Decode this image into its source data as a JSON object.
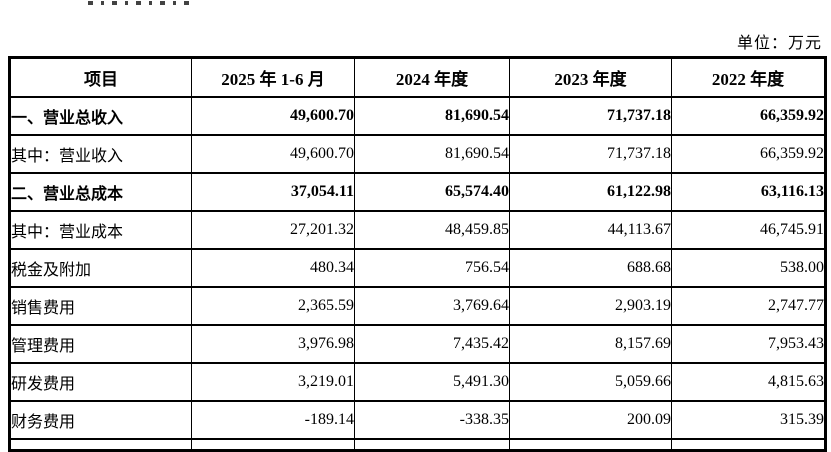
{
  "page": {
    "unit_label": "单位：万元"
  },
  "table": {
    "columns": [
      "项目",
      "2025 年 1-6 月",
      "2024 年度",
      "2023 年度",
      "2022 年度"
    ],
    "rows": [
      {
        "label": "一、营业总收入",
        "bold": true,
        "values": [
          "49,600.70",
          "81,690.54",
          "71,737.18",
          "66,359.92"
        ]
      },
      {
        "label": "其中：营业收入",
        "bold": false,
        "values": [
          "49,600.70",
          "81,690.54",
          "71,737.18",
          "66,359.92"
        ]
      },
      {
        "label": "二、营业总成本",
        "bold": true,
        "values": [
          "37,054.11",
          "65,574.40",
          "61,122.98",
          "63,116.13"
        ]
      },
      {
        "label": "其中：营业成本",
        "bold": false,
        "values": [
          "27,201.32",
          "48,459.85",
          "44,113.67",
          "46,745.91"
        ]
      },
      {
        "label": "税金及附加",
        "bold": false,
        "values": [
          "480.34",
          "756.54",
          "688.68",
          "538.00"
        ]
      },
      {
        "label": "销售费用",
        "bold": false,
        "values": [
          "2,365.59",
          "3,769.64",
          "2,903.19",
          "2,747.77"
        ]
      },
      {
        "label": "管理费用",
        "bold": false,
        "values": [
          "3,976.98",
          "7,435.42",
          "8,157.69",
          "7,953.43"
        ]
      },
      {
        "label": "研发费用",
        "bold": false,
        "values": [
          "3,219.01",
          "5,491.30",
          "5,059.66",
          "4,815.63"
        ]
      },
      {
        "label": "财务费用",
        "bold": false,
        "values": [
          "-189.14",
          "-338.35",
          "200.09",
          "315.39"
        ]
      }
    ]
  }
}
